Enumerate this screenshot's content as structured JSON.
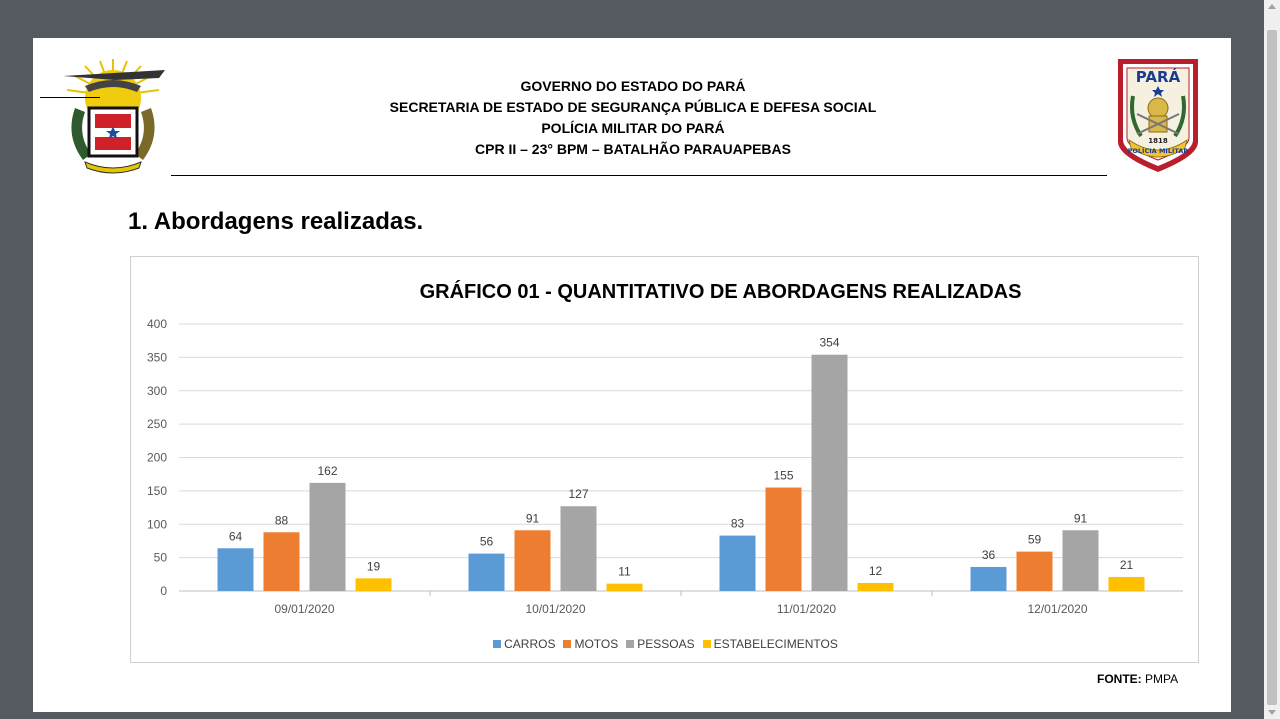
{
  "header": {
    "line1": "GOVERNO DO ESTADO DO PARÁ",
    "line2": "SECRETARIA DE ESTADO DE SEGURANÇA PÚBLICA E DEFESA SOCIAL",
    "line3": "POLÍCIA MILITAR DO PARÁ",
    "line4": "CPR II – 23° BPM – BATALHÃO PARAUAPEBAS"
  },
  "logo_right": {
    "top_text": "PARÁ",
    "year": "1818",
    "bottom_text": "POLÍCIA MILITAR"
  },
  "section_title": "1. Abordagens realizadas.",
  "source": {
    "label": "FONTE:",
    "value": "PMPA"
  },
  "colors": {
    "carros": "#5b9bd5",
    "motos": "#ed7d31",
    "pessoas": "#a5a5a5",
    "estabelecimentos": "#ffc000"
  },
  "chart_data": {
    "type": "bar",
    "title": "GRÁFICO 01 - QUANTITATIVO DE ABORDAGENS REALIZADAS",
    "xlabel": "",
    "ylabel": "",
    "ylim": [
      0,
      400
    ],
    "yticks": [
      0,
      50,
      100,
      150,
      200,
      250,
      300,
      350,
      400
    ],
    "grid": true,
    "legend_position": "bottom",
    "categories": [
      "09/01/2020",
      "10/01/2020",
      "11/01/2020",
      "12/01/2020"
    ],
    "series": [
      {
        "name": "CARROS",
        "color": "#5b9bd5",
        "values": [
          64,
          56,
          83,
          36
        ]
      },
      {
        "name": "MOTOS",
        "color": "#ed7d31",
        "values": [
          88,
          91,
          155,
          59
        ]
      },
      {
        "name": "PESSOAS",
        "color": "#a5a5a5",
        "values": [
          162,
          127,
          354,
          91
        ]
      },
      {
        "name": "ESTABELECIMENTOS",
        "color": "#ffc000",
        "values": [
          19,
          11,
          12,
          21
        ]
      }
    ]
  }
}
